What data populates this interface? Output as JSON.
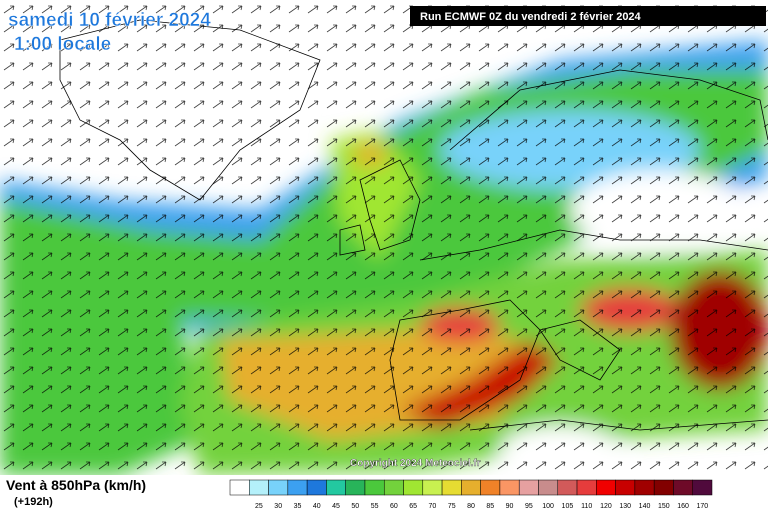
{
  "header": {
    "title": "samedi 10 février 2024",
    "subtitle": "1:00 locale",
    "run": "Run ECMWF 0Z du vendredi 2 février 2024"
  },
  "map": {
    "copyright": "Copyright 2024 Meteociel.fr"
  },
  "legend": {
    "title": "Vent à 850hPa (km/h)",
    "subtitle": "(+192h)",
    "colors": [
      "#ffffff",
      "#b4f0fa",
      "#78d2fa",
      "#3ca0f0",
      "#1e78dc",
      "#23c8a0",
      "#28b45a",
      "#4bc83c",
      "#73d23c",
      "#a0e632",
      "#c8f050",
      "#e6dc32",
      "#e6af2d",
      "#f08228",
      "#fa9664",
      "#e6a0a0",
      "#c88c8c",
      "#d25a5a",
      "#e63c3c",
      "#f00000",
      "#c80000",
      "#a00000",
      "#820000",
      "#6e0a28",
      "#500a3c"
    ],
    "labels": [
      25,
      30,
      35,
      40,
      45,
      50,
      55,
      60,
      65,
      70,
      75,
      80,
      85,
      90,
      95,
      100,
      105,
      110,
      120,
      130,
      140,
      150,
      160,
      170
    ]
  }
}
